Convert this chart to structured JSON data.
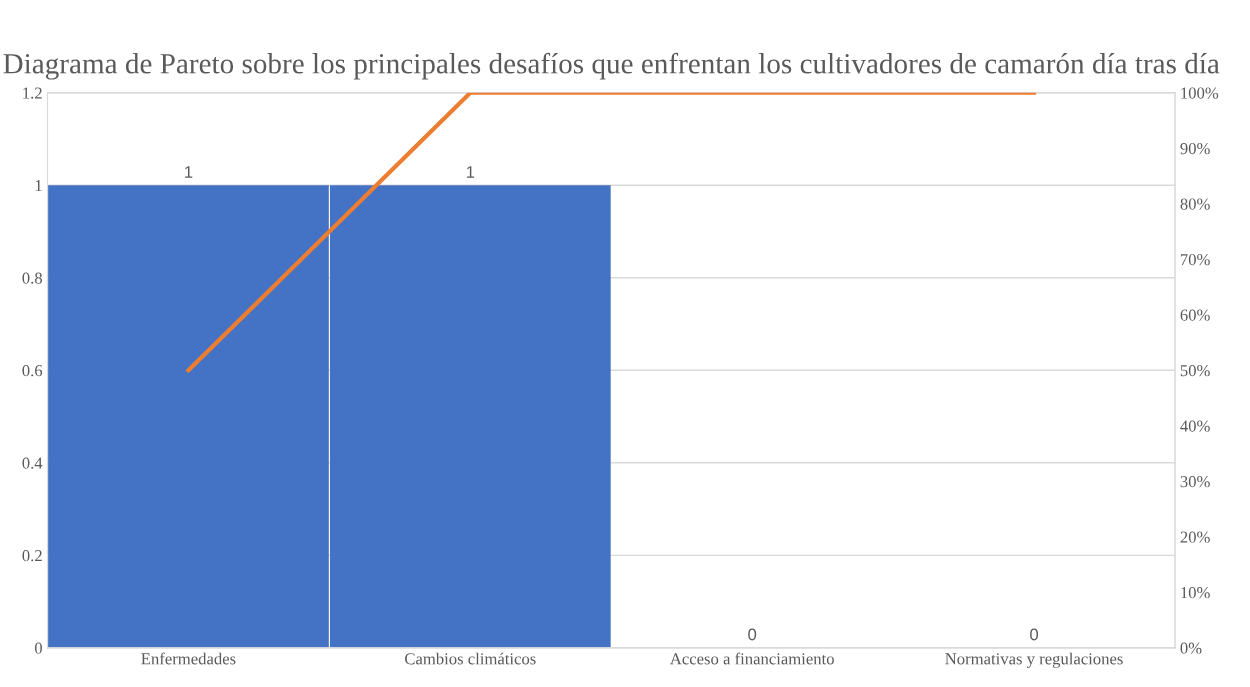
{
  "chart_data": {
    "type": "bar",
    "title": "Diagrama de Pareto sobre los principales desafíos que enfrentan los cultivadores de camarón día tras día",
    "categories": [
      "Enfermedades",
      "Cambios climáticos",
      "Acceso a financiamiento",
      "Normativas y regulaciones"
    ],
    "series": [
      {
        "color": "#4472c4",
        "values": [
          1,
          1,
          0,
          0
        ],
        "value_labels": [
          "1",
          "1",
          "0",
          "0"
        ]
      },
      {
        "type": "line",
        "axis": "y2",
        "color": "#ed7d31",
        "values": [
          50,
          100,
          100,
          100
        ]
      }
    ],
    "ylim": [
      0,
      1.2
    ],
    "yticks": [
      0,
      0.2,
      0.4,
      0.6,
      0.8,
      1,
      1.2
    ],
    "y2lim": [
      0,
      100
    ],
    "y2ticks": [
      {
        "value": 0,
        "label": "0%"
      },
      {
        "value": 10,
        "label": "10%"
      },
      {
        "value": 20,
        "label": "20%"
      },
      {
        "value": 30,
        "label": "30%"
      },
      {
        "value": 40,
        "label": "40%"
      },
      {
        "value": 50,
        "label": "50%"
      },
      {
        "value": 60,
        "label": "60%"
      },
      {
        "value": 70,
        "label": "70%"
      },
      {
        "value": 80,
        "label": "80%"
      },
      {
        "value": 90,
        "label": "90%"
      },
      {
        "value": 100,
        "label": "100%"
      }
    ],
    "grid": "y",
    "legend": false,
    "marker": "none",
    "line_style": "solid"
  }
}
